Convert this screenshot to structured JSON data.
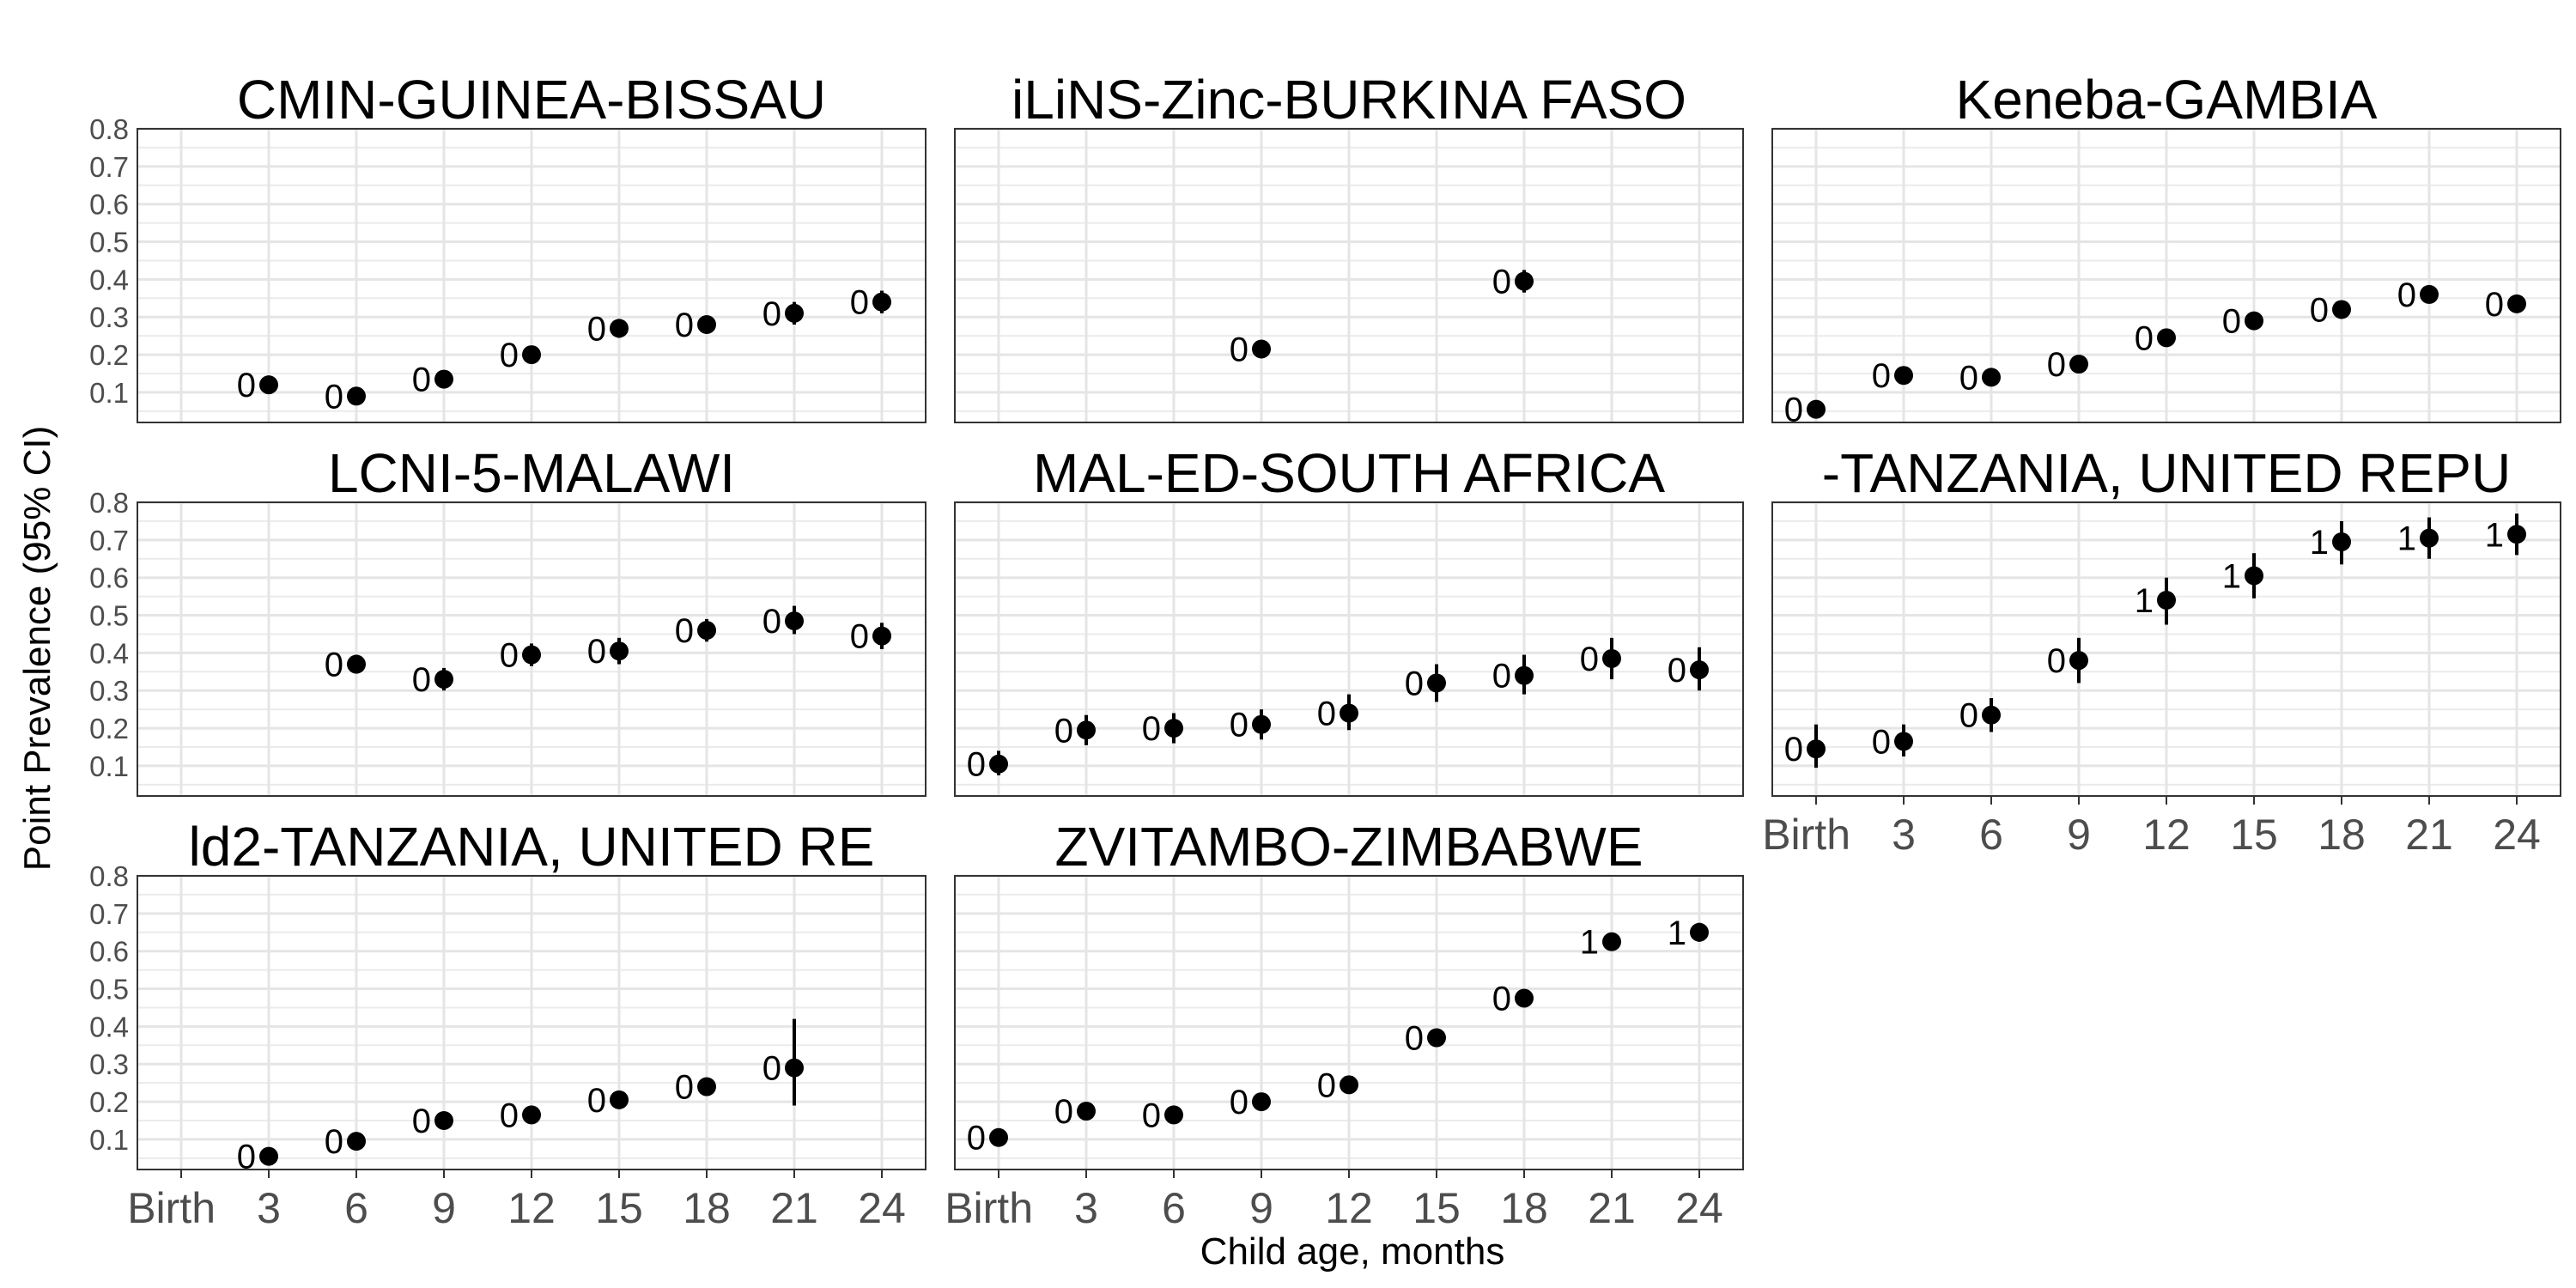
{
  "chart_data": {
    "type": "scatter",
    "xlabel": "Child age, months",
    "ylabel": "Point Prevalence (95% CI)",
    "x_ticks": [
      "Birth",
      "3",
      "6",
      "9",
      "12",
      "15",
      "18",
      "21",
      "24"
    ],
    "y_ticks": [
      "0.1",
      "0.2",
      "0.3",
      "0.4",
      "0.5",
      "0.6",
      "0.7",
      "0.8"
    ],
    "ylim": [
      0.02,
      0.8
    ],
    "grid": true,
    "panels": [
      {
        "title": "CMIN-GUINEA-BISSAU",
        "points": [
          {
            "x": 3,
            "y": 0.12,
            "lo": 0.105,
            "hi": 0.135,
            "label": "0"
          },
          {
            "x": 6,
            "y": 0.09,
            "lo": 0.078,
            "hi": 0.102,
            "label": "0"
          },
          {
            "x": 9,
            "y": 0.135,
            "lo": 0.12,
            "hi": 0.15,
            "label": "0"
          },
          {
            "x": 12,
            "y": 0.2,
            "lo": 0.183,
            "hi": 0.217,
            "label": "0"
          },
          {
            "x": 15,
            "y": 0.27,
            "lo": 0.245,
            "hi": 0.295,
            "label": "0"
          },
          {
            "x": 18,
            "y": 0.28,
            "lo": 0.258,
            "hi": 0.302,
            "label": "0"
          },
          {
            "x": 21,
            "y": 0.31,
            "lo": 0.28,
            "hi": 0.34,
            "label": "0"
          },
          {
            "x": 24,
            "y": 0.34,
            "lo": 0.31,
            "hi": 0.37,
            "label": "0"
          }
        ]
      },
      {
        "title": "iLiNS-Zinc-BURKINA FASO",
        "points": [
          {
            "x": 9,
            "y": 0.215,
            "lo": 0.2,
            "hi": 0.23,
            "label": "0"
          },
          {
            "x": 18,
            "y": 0.395,
            "lo": 0.365,
            "hi": 0.425,
            "label": "0"
          }
        ]
      },
      {
        "title": "Keneba-GAMBIA",
        "points": [
          {
            "x": 0,
            "y": 0.055,
            "lo": 0.045,
            "hi": 0.065,
            "label": "0"
          },
          {
            "x": 3,
            "y": 0.145,
            "lo": 0.13,
            "hi": 0.16,
            "label": "0"
          },
          {
            "x": 6,
            "y": 0.14,
            "lo": 0.125,
            "hi": 0.155,
            "label": "0"
          },
          {
            "x": 9,
            "y": 0.175,
            "lo": 0.16,
            "hi": 0.19,
            "label": "0"
          },
          {
            "x": 12,
            "y": 0.245,
            "lo": 0.23,
            "hi": 0.26,
            "label": "0"
          },
          {
            "x": 15,
            "y": 0.29,
            "lo": 0.273,
            "hi": 0.307,
            "label": "0"
          },
          {
            "x": 18,
            "y": 0.32,
            "lo": 0.303,
            "hi": 0.337,
            "label": "0"
          },
          {
            "x": 21,
            "y": 0.36,
            "lo": 0.343,
            "hi": 0.377,
            "label": "0"
          },
          {
            "x": 24,
            "y": 0.335,
            "lo": 0.318,
            "hi": 0.352,
            "label": "0"
          }
        ]
      },
      {
        "title": "LCNI-5-MALAWI",
        "points": [
          {
            "x": 6,
            "y": 0.37,
            "lo": 0.345,
            "hi": 0.395,
            "label": "0"
          },
          {
            "x": 9,
            "y": 0.33,
            "lo": 0.3,
            "hi": 0.36,
            "label": "0"
          },
          {
            "x": 12,
            "y": 0.395,
            "lo": 0.365,
            "hi": 0.425,
            "label": "0"
          },
          {
            "x": 15,
            "y": 0.405,
            "lo": 0.37,
            "hi": 0.44,
            "label": "0"
          },
          {
            "x": 18,
            "y": 0.46,
            "lo": 0.43,
            "hi": 0.49,
            "label": "0"
          },
          {
            "x": 21,
            "y": 0.485,
            "lo": 0.45,
            "hi": 0.525,
            "label": "0"
          },
          {
            "x": 24,
            "y": 0.445,
            "lo": 0.41,
            "hi": 0.48,
            "label": "0"
          }
        ]
      },
      {
        "title": "MAL-ED-SOUTH AFRICA",
        "points": [
          {
            "x": 0,
            "y": 0.105,
            "lo": 0.075,
            "hi": 0.14,
            "label": "0"
          },
          {
            "x": 3,
            "y": 0.195,
            "lo": 0.155,
            "hi": 0.235,
            "label": "0"
          },
          {
            "x": 6,
            "y": 0.2,
            "lo": 0.16,
            "hi": 0.24,
            "label": "0"
          },
          {
            "x": 9,
            "y": 0.21,
            "lo": 0.17,
            "hi": 0.25,
            "label": "0"
          },
          {
            "x": 12,
            "y": 0.24,
            "lo": 0.195,
            "hi": 0.29,
            "label": "0"
          },
          {
            "x": 15,
            "y": 0.32,
            "lo": 0.27,
            "hi": 0.37,
            "label": "0"
          },
          {
            "x": 18,
            "y": 0.34,
            "lo": 0.29,
            "hi": 0.395,
            "label": "0"
          },
          {
            "x": 21,
            "y": 0.385,
            "lo": 0.33,
            "hi": 0.44,
            "label": "0"
          },
          {
            "x": 24,
            "y": 0.355,
            "lo": 0.3,
            "hi": 0.415,
            "label": "0"
          }
        ]
      },
      {
        "title": "-TANZANIA, UNITED REPU",
        "points": [
          {
            "x": 0,
            "y": 0.145,
            "lo": 0.095,
            "hi": 0.21,
            "label": "0"
          },
          {
            "x": 3,
            "y": 0.165,
            "lo": 0.125,
            "hi": 0.21,
            "label": "0"
          },
          {
            "x": 6,
            "y": 0.235,
            "lo": 0.19,
            "hi": 0.28,
            "label": "0"
          },
          {
            "x": 9,
            "y": 0.38,
            "lo": 0.32,
            "hi": 0.44,
            "label": "0"
          },
          {
            "x": 12,
            "y": 0.54,
            "lo": 0.475,
            "hi": 0.6,
            "label": "1"
          },
          {
            "x": 15,
            "y": 0.605,
            "lo": 0.545,
            "hi": 0.665,
            "label": "1"
          },
          {
            "x": 18,
            "y": 0.695,
            "lo": 0.635,
            "hi": 0.75,
            "label": "1"
          },
          {
            "x": 21,
            "y": 0.705,
            "lo": 0.65,
            "hi": 0.76,
            "label": "1"
          },
          {
            "x": 24,
            "y": 0.715,
            "lo": 0.66,
            "hi": 0.77,
            "label": "1"
          }
        ]
      },
      {
        "title": "ld2-TANZANIA, UNITED RE",
        "points": [
          {
            "x": 3,
            "y": 0.055,
            "lo": 0.045,
            "hi": 0.065,
            "label": "0"
          },
          {
            "x": 6,
            "y": 0.095,
            "lo": 0.083,
            "hi": 0.107,
            "label": "0"
          },
          {
            "x": 9,
            "y": 0.15,
            "lo": 0.135,
            "hi": 0.165,
            "label": "0"
          },
          {
            "x": 12,
            "y": 0.165,
            "lo": 0.15,
            "hi": 0.18,
            "label": "0"
          },
          {
            "x": 15,
            "y": 0.205,
            "lo": 0.19,
            "hi": 0.22,
            "label": "0"
          },
          {
            "x": 18,
            "y": 0.24,
            "lo": 0.225,
            "hi": 0.255,
            "label": "0"
          },
          {
            "x": 21,
            "y": 0.29,
            "lo": 0.19,
            "hi": 0.42,
            "label": "0"
          }
        ]
      },
      {
        "title": "ZVITAMBO-ZIMBABWE",
        "points": [
          {
            "x": 0,
            "y": 0.105,
            "lo": 0.095,
            "hi": 0.115,
            "label": "0"
          },
          {
            "x": 3,
            "y": 0.175,
            "lo": 0.162,
            "hi": 0.188,
            "label": "0"
          },
          {
            "x": 6,
            "y": 0.165,
            "lo": 0.152,
            "hi": 0.178,
            "label": "0"
          },
          {
            "x": 9,
            "y": 0.2,
            "lo": 0.187,
            "hi": 0.213,
            "label": "0"
          },
          {
            "x": 12,
            "y": 0.245,
            "lo": 0.232,
            "hi": 0.258,
            "label": "0"
          },
          {
            "x": 15,
            "y": 0.37,
            "lo": 0.355,
            "hi": 0.385,
            "label": "0"
          },
          {
            "x": 18,
            "y": 0.475,
            "lo": 0.46,
            "hi": 0.49,
            "label": "0"
          },
          {
            "x": 21,
            "y": 0.625,
            "lo": 0.61,
            "hi": 0.64,
            "label": "1"
          },
          {
            "x": 24,
            "y": 0.65,
            "lo": 0.625,
            "hi": 0.675,
            "label": "1"
          }
        ]
      }
    ]
  }
}
